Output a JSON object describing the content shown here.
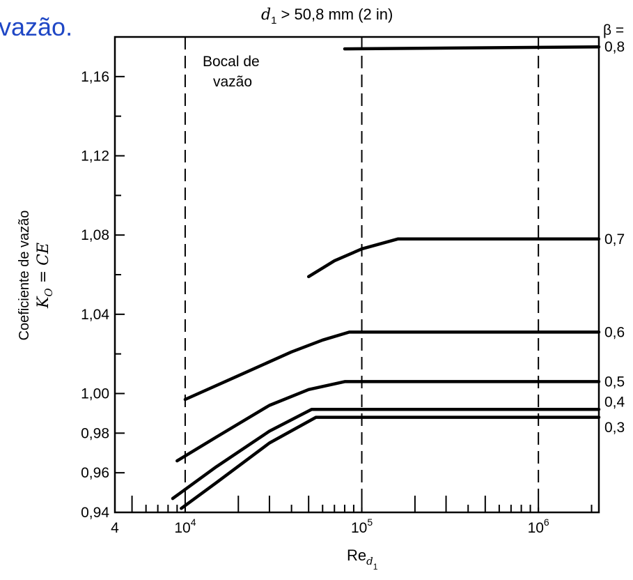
{
  "header": {
    "text": "vazão."
  },
  "chart_data": {
    "type": "line",
    "title": "d₁ > 50,8 mm (2 in)",
    "title_parts": {
      "var": "d",
      "sub": "1",
      "rest": " > 50,8 mm (2 in)"
    },
    "xlabel": {
      "base": "Re",
      "sub_d": "d",
      "sub_1": "1"
    },
    "ylabel_line1": "Coeficiente de vazão",
    "ylabel_line2": {
      "k": "K",
      "k_sub": "O",
      "rest": " = CE"
    },
    "x_scale": "log",
    "xlim": [
      4000,
      2200000
    ],
    "ylim": [
      0.94,
      1.18
    ],
    "y_ticks": [
      {
        "value": 0.94,
        "label": "0,94"
      },
      {
        "value": 0.96,
        "label": "0,96"
      },
      {
        "value": 0.98,
        "label": "0,98"
      },
      {
        "value": 1.0,
        "label": "1,00"
      },
      {
        "value": 1.04,
        "label": "1,04"
      },
      {
        "value": 1.08,
        "label": "1,08"
      },
      {
        "value": 1.12,
        "label": "1,12"
      },
      {
        "value": 1.16,
        "label": "1,16"
      }
    ],
    "y_minor_ticks": [
      1.02,
      1.06,
      1.1,
      1.14
    ],
    "x_ticks": [
      {
        "value": 4000,
        "base": "4",
        "exp": ""
      },
      {
        "value": 10000,
        "base": "10",
        "exp": "4"
      },
      {
        "value": 100000,
        "base": "10",
        "exp": "5"
      },
      {
        "value": 1000000,
        "base": "10",
        "exp": "6"
      }
    ],
    "x_minor_ticks": [
      5000,
      6000,
      7000,
      8000,
      9000,
      20000,
      30000,
      40000,
      50000,
      60000,
      70000,
      80000,
      90000,
      200000,
      300000,
      400000,
      500000,
      600000,
      700000,
      800000,
      900000,
      2000000
    ],
    "vlines": [
      10000,
      100000,
      1000000
    ],
    "grid": false,
    "annotation": {
      "line1": "Bocal de",
      "line2": "vazão"
    },
    "beta_header": "β =",
    "series": [
      {
        "name": "0,8",
        "label_value": 1.175,
        "points": [
          [
            80000,
            1.174
          ],
          [
            2200000,
            1.175
          ]
        ]
      },
      {
        "name": "0,7",
        "label_value": 1.078,
        "points": [
          [
            50000,
            1.059
          ],
          [
            70000,
            1.067
          ],
          [
            100000,
            1.073
          ],
          [
            160000,
            1.078
          ],
          [
            2200000,
            1.078
          ]
        ]
      },
      {
        "name": "0,6",
        "label_value": 1.031,
        "points": [
          [
            10000,
            0.997
          ],
          [
            20000,
            1.009
          ],
          [
            40000,
            1.021
          ],
          [
            60000,
            1.027
          ],
          [
            85000,
            1.031
          ],
          [
            2200000,
            1.031
          ]
        ]
      },
      {
        "name": "0,5",
        "label_value": 1.006,
        "points": [
          [
            9000,
            0.966
          ],
          [
            15000,
            0.978
          ],
          [
            30000,
            0.994
          ],
          [
            50000,
            1.002
          ],
          [
            80000,
            1.006
          ],
          [
            2200000,
            1.006
          ]
        ]
      },
      {
        "name": "0,4",
        "label_value": 0.992,
        "points": [
          [
            8500,
            0.947
          ],
          [
            15000,
            0.963
          ],
          [
            30000,
            0.981
          ],
          [
            52000,
            0.992
          ],
          [
            2200000,
            0.992
          ]
        ]
      },
      {
        "name": "0,3",
        "label_value": 0.987,
        "points": [
          [
            9500,
            0.942
          ],
          [
            15000,
            0.955
          ],
          [
            30000,
            0.975
          ],
          [
            55000,
            0.988
          ],
          [
            2200000,
            0.988
          ]
        ]
      }
    ]
  }
}
